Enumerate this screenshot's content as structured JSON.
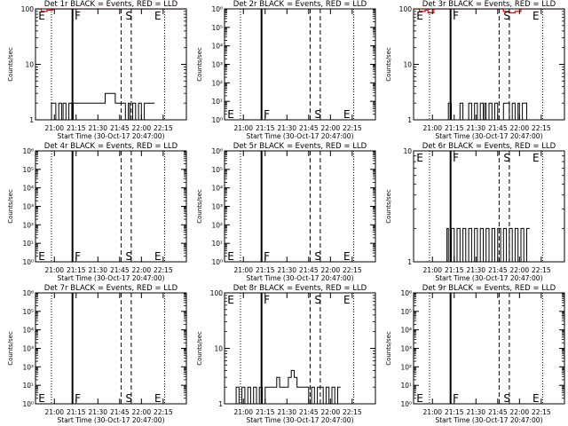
{
  "figure": {
    "xlabel": "Start Time (30-Oct-17 20:47:00)",
    "ylabel": "Counts/sec",
    "event_colors": {
      "events": "#000000",
      "lld": "#ff0000"
    },
    "x_ticks": [
      "21:00",
      "21:15",
      "21:30",
      "21:45",
      "22:00",
      "22:15"
    ],
    "x_tick_minutes": [
      13,
      28,
      43,
      58,
      73,
      88
    ],
    "xlim_minutes": [
      0,
      104
    ],
    "markers": {
      "dotted_minutes": [
        11,
        89
      ],
      "solid_minutes": [
        25.5
      ],
      "dashed_minutes": [
        59,
        66
      ],
      "letters": [
        {
          "text": "E",
          "minute": 2
        },
        {
          "text": "F",
          "minute": 27
        },
        {
          "text": "S",
          "minute": 62
        },
        {
          "text": "E",
          "minute": 82
        }
      ]
    }
  },
  "chart_data": [
    {
      "type": "line",
      "title": "Det 1r BLACK = Events, RED = LLD",
      "yscale": "log",
      "ylim": [
        1,
        100
      ],
      "y_ticks": [
        {
          "v": 1,
          "t": "1"
        },
        {
          "v": 10,
          "t": "10"
        },
        {
          "v": 100,
          "t": "100"
        }
      ],
      "letters_y": "top",
      "series": [
        {
          "role": "events",
          "x": [
            0,
            8,
            11,
            14,
            16,
            18,
            19,
            21,
            23,
            25,
            26,
            28,
            30,
            32,
            34,
            36,
            38,
            40,
            42,
            44,
            46,
            48,
            50,
            52,
            55,
            60,
            62,
            64,
            65,
            67,
            69,
            71,
            73,
            75,
            76,
            78,
            80
          ],
          "y": [
            1,
            1,
            2,
            1,
            2,
            1,
            2,
            1,
            2,
            1,
            2,
            2,
            2,
            2,
            2,
            2,
            2,
            2,
            2,
            2,
            2,
            3,
            3,
            3,
            2,
            2,
            1,
            2,
            1,
            2,
            1,
            2,
            1,
            2,
            2,
            2,
            2
          ]
        },
        {
          "role": "lld",
          "x": [
            0,
            4,
            8,
            12,
            16,
            20,
            24,
            28,
            32,
            36,
            40,
            44,
            48,
            52,
            56,
            60,
            64,
            68,
            72,
            76,
            80,
            84,
            88,
            92,
            96,
            100,
            104
          ],
          "y": [
            100,
            90,
            95,
            100,
            100,
            100,
            100,
            100,
            100,
            100,
            100,
            100,
            100,
            100,
            100,
            100,
            100,
            100,
            100,
            100,
            100,
            100,
            100,
            100,
            100,
            100,
            100
          ]
        }
      ]
    },
    {
      "type": "line",
      "title": "Det 2r BLACK = Events, RED = LLD",
      "yscale": "log",
      "ylim": [
        1,
        1000000
      ],
      "y_ticks": [
        {
          "v": 1,
          "t": "10⁰"
        },
        {
          "v": 10,
          "t": "10¹"
        },
        {
          "v": 100,
          "t": "10²"
        },
        {
          "v": 1000,
          "t": "10³"
        },
        {
          "v": 10000,
          "t": "10⁴"
        },
        {
          "v": 100000,
          "t": "10⁵"
        },
        {
          "v": 1000000,
          "t": "10⁶"
        }
      ],
      "letters_y": "bottom",
      "series": []
    },
    {
      "type": "line",
      "title": "Det 3r BLACK = Events, RED = LLD",
      "yscale": "log",
      "ylim": [
        1,
        100
      ],
      "y_ticks": [
        {
          "v": 1,
          "t": "1"
        },
        {
          "v": 10,
          "t": "10"
        },
        {
          "v": 100,
          "t": "100"
        }
      ],
      "letters_y": "top",
      "series": [
        {
          "role": "events",
          "x": [
            22,
            24,
            26,
            32,
            34,
            38,
            40,
            42,
            44,
            46,
            48,
            49,
            50,
            52,
            54,
            56,
            58,
            60,
            62,
            66,
            68,
            70,
            72,
            73,
            75,
            78
          ],
          "y": [
            1,
            2,
            1,
            2,
            1,
            2,
            1,
            2,
            1,
            2,
            1,
            2,
            1,
            2,
            1,
            2,
            1,
            1,
            2,
            1,
            2,
            1,
            2,
            1,
            2,
            1
          ]
        },
        {
          "role": "lld",
          "x": [
            0,
            4,
            8,
            10,
            14,
            18,
            22,
            26,
            30,
            34,
            38,
            42,
            46,
            50,
            54,
            58,
            62,
            66,
            70,
            74,
            78,
            82,
            86,
            90,
            94,
            98,
            104
          ],
          "y": [
            100,
            90,
            95,
            85,
            100,
            100,
            100,
            100,
            100,
            100,
            100,
            100,
            100,
            100,
            100,
            100,
            90,
            85,
            90,
            100,
            100,
            100,
            100,
            100,
            100,
            100,
            100
          ]
        }
      ]
    },
    {
      "type": "line",
      "title": "Det 4r BLACK = Events, RED = LLD",
      "yscale": "log",
      "ylim": [
        1,
        1000000
      ],
      "y_ticks": [
        {
          "v": 1,
          "t": "10⁰"
        },
        {
          "v": 10,
          "t": "10¹"
        },
        {
          "v": 100,
          "t": "10²"
        },
        {
          "v": 1000,
          "t": "10³"
        },
        {
          "v": 10000,
          "t": "10⁴"
        },
        {
          "v": 100000,
          "t": "10⁵"
        },
        {
          "v": 1000000,
          "t": "10⁶"
        }
      ],
      "letters_y": "bottom",
      "series": []
    },
    {
      "type": "line",
      "title": "Det 5r BLACK = Events, RED = LLD",
      "yscale": "log",
      "ylim": [
        1,
        1000000
      ],
      "y_ticks": [
        {
          "v": 1,
          "t": "10⁰"
        },
        {
          "v": 10,
          "t": "10¹"
        },
        {
          "v": 100,
          "t": "10²"
        },
        {
          "v": 1000,
          "t": "10³"
        },
        {
          "v": 10000,
          "t": "10⁴"
        },
        {
          "v": 100000,
          "t": "10⁵"
        },
        {
          "v": 1000000,
          "t": "10⁶"
        }
      ],
      "letters_y": "bottom",
      "series": []
    },
    {
      "type": "line",
      "title": "Det 6r BLACK = Events, RED = LLD",
      "yscale": "log",
      "ylim": [
        1,
        10
      ],
      "y_ticks": [
        {
          "v": 1,
          "t": "1"
        },
        {
          "v": 10,
          "t": "10"
        }
      ],
      "letters_y": "top",
      "series": [
        {
          "role": "events",
          "x": [
            22,
            23,
            24,
            26,
            28,
            30,
            32,
            34,
            36,
            38,
            40,
            42,
            44,
            46,
            48,
            50,
            52,
            54,
            56,
            58,
            60,
            62,
            64,
            66,
            68,
            70,
            72,
            74,
            76,
            78
          ],
          "y": [
            1,
            2,
            1,
            2,
            1,
            2,
            1,
            2,
            1,
            2,
            1,
            2,
            1,
            2,
            1,
            2,
            1,
            2,
            1,
            2,
            1,
            2,
            1,
            2,
            1,
            2,
            1,
            2,
            1,
            2
          ]
        }
      ]
    },
    {
      "type": "line",
      "title": "Det 7r BLACK = Events, RED = LLD",
      "yscale": "log",
      "ylim": [
        1,
        1000000
      ],
      "y_ticks": [
        {
          "v": 1,
          "t": "10⁰"
        },
        {
          "v": 10,
          "t": "10¹"
        },
        {
          "v": 100,
          "t": "10²"
        },
        {
          "v": 1000,
          "t": "10³"
        },
        {
          "v": 10000,
          "t": "10⁴"
        },
        {
          "v": 100000,
          "t": "10⁵"
        },
        {
          "v": 1000000,
          "t": "10⁶"
        }
      ],
      "letters_y": "bottom",
      "series": []
    },
    {
      "type": "line",
      "title": "Det 8r BLACK = Events, RED = LLD",
      "yscale": "log",
      "ylim": [
        1,
        100
      ],
      "y_ticks": [
        {
          "v": 1,
          "t": "1"
        },
        {
          "v": 10,
          "t": "10"
        },
        {
          "v": 100,
          "t": "100"
        }
      ],
      "letters_y": "top",
      "series": [
        {
          "role": "events",
          "x": [
            0,
            6,
            8,
            10,
            12,
            14,
            16,
            18,
            20,
            22,
            24,
            26,
            28,
            30,
            32,
            34,
            36,
            38,
            40,
            42,
            44,
            46,
            48,
            50,
            52,
            54,
            56,
            58,
            60,
            62,
            64,
            66,
            68,
            70,
            72,
            74,
            76,
            78
          ],
          "y": [
            1,
            1,
            2,
            1,
            2,
            1,
            2,
            1,
            2,
            1,
            2,
            1,
            2,
            2,
            2,
            2,
            3,
            2,
            2,
            2,
            3,
            4,
            3,
            2,
            2,
            2,
            2,
            1,
            2,
            1,
            2,
            2,
            1,
            2,
            1,
            2,
            1,
            2
          ]
        }
      ]
    },
    {
      "type": "line",
      "title": "Det 9r BLACK = Events, RED = LLD",
      "yscale": "log",
      "ylim": [
        1,
        1000000
      ],
      "y_ticks": [
        {
          "v": 1,
          "t": "10⁰"
        },
        {
          "v": 10,
          "t": "10¹"
        },
        {
          "v": 100,
          "t": "10²"
        },
        {
          "v": 1000,
          "t": "10³"
        },
        {
          "v": 10000,
          "t": "10⁴"
        },
        {
          "v": 100000,
          "t": "10⁵"
        },
        {
          "v": 1000000,
          "t": "10⁶"
        }
      ],
      "letters_y": "bottom",
      "series": []
    }
  ]
}
